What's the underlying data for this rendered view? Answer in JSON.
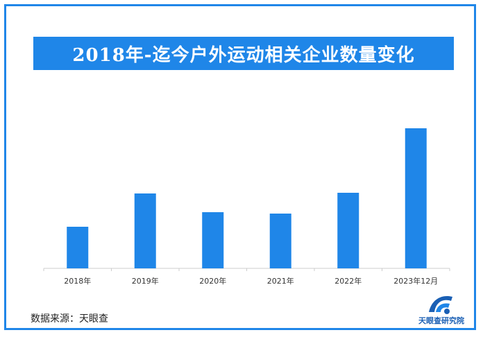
{
  "title": "2018年-迄今户外运动相关企业数量变化",
  "source_text": "数据来源：天眼查",
  "brand_text": "天眼查研究院",
  "colors": {
    "accent": "#1f86e8",
    "bar": "#1f86e8",
    "axis": "#cccccc",
    "brand": "#1a5fb4"
  },
  "icons": {
    "brand_logo": "tianyancha-logo-icon"
  },
  "chart_data": {
    "type": "bar",
    "categories": [
      "2018年",
      "2019年",
      "2020年",
      "2021年",
      "2022年",
      "2023年12月"
    ],
    "values": [
      60,
      108,
      81,
      79,
      109,
      202
    ],
    "title": "2018年-迄今户外运动相关企业数量变化",
    "xlabel": "",
    "ylabel": "",
    "ylim": [
      0,
      210
    ],
    "grid": false,
    "legend": "none",
    "note": ""
  }
}
